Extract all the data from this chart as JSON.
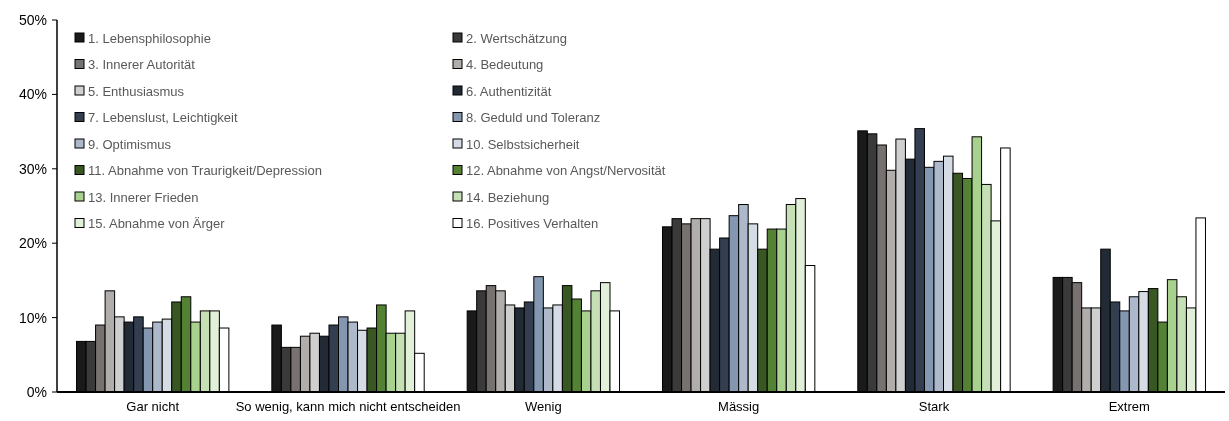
{
  "chart_data": {
    "type": "bar",
    "categories": [
      "Gar nicht",
      "So wenig, kann mich nicht entscheiden",
      "Wenig",
      "Mässig",
      "Stark",
      "Extrem"
    ],
    "ylim": [
      0,
      50
    ],
    "yticks": [
      {
        "value": 0,
        "label": "0%"
      },
      {
        "value": 10,
        "label": "10%"
      },
      {
        "value": 20,
        "label": "20%"
      },
      {
        "value": 30,
        "label": "30%"
      },
      {
        "value": 40,
        "label": "40%"
      },
      {
        "value": 50,
        "label": "50%"
      }
    ],
    "grid": false,
    "legend": "top left",
    "series": [
      {
        "name": "1. Lebensphilosophie",
        "color": "#1a1a1a",
        "values": [
          6.8,
          9.0,
          10.9,
          22.2,
          35.1,
          15.4
        ]
      },
      {
        "name": "2. Wertschätzung",
        "color": "#3a3a3a",
        "values": [
          6.8,
          6.0,
          13.6,
          23.3,
          34.7,
          15.4
        ]
      },
      {
        "name": "3. Innerer Autorität",
        "color": "#777270",
        "values": [
          9.0,
          6.0,
          14.3,
          22.6,
          33.2,
          14.7
        ]
      },
      {
        "name": "4. Bedeutung",
        "color": "#b0adab",
        "values": [
          13.6,
          7.5,
          13.6,
          23.3,
          29.8,
          11.3
        ]
      },
      {
        "name": "5. Enthusiasmus",
        "color": "#d0cfd0",
        "values": [
          10.1,
          7.9,
          11.7,
          23.3,
          34.0,
          11.3
        ]
      },
      {
        "name": "6. Authentizität",
        "color": "#222a35",
        "values": [
          9.4,
          7.5,
          11.3,
          19.2,
          31.3,
          19.2
        ]
      },
      {
        "name": "7. Lebenslust, Leichtigkeit",
        "color": "#333f50",
        "values": [
          10.1,
          9.0,
          12.1,
          20.7,
          35.4,
          12.1
        ]
      },
      {
        "name": "8. Geduld und Toleranz",
        "color": "#8497b0",
        "values": [
          8.6,
          10.1,
          15.5,
          23.7,
          30.2,
          10.9
        ]
      },
      {
        "name": "9. Optimismus",
        "color": "#adb9ca",
        "values": [
          9.4,
          9.4,
          11.3,
          25.2,
          31.0,
          12.8
        ]
      },
      {
        "name": "10. Selbstsicherheit",
        "color": "#d6dce5",
        "values": [
          9.8,
          8.3,
          11.7,
          22.6,
          31.7,
          13.5
        ]
      },
      {
        "name": "11. Abnahme von Traurigkeit/Depression",
        "color": "#385723",
        "values": [
          12.1,
          8.6,
          14.3,
          19.2,
          29.4,
          13.9
        ]
      },
      {
        "name": "12. Abnahme von Angst/Nervosität",
        "color": "#548235",
        "values": [
          12.8,
          11.7,
          12.5,
          21.9,
          28.7,
          9.4
        ]
      },
      {
        "name": "13. Innerer Frieden",
        "color": "#a9d18e",
        "values": [
          9.4,
          7.9,
          10.9,
          21.9,
          34.3,
          15.1
        ]
      },
      {
        "name": "14. Beziehung",
        "color": "#c5e0b4",
        "values": [
          10.9,
          7.9,
          13.6,
          25.2,
          27.9,
          12.8
        ]
      },
      {
        "name": "15. Abnahme von Ärger",
        "color": "#e2f0d9",
        "values": [
          10.9,
          10.9,
          14.7,
          26.0,
          23.0,
          11.3
        ]
      },
      {
        "name": "16. Positives Verhalten",
        "color": "#ffffff",
        "values": [
          8.6,
          5.2,
          10.9,
          17.0,
          32.8,
          23.4
        ]
      }
    ]
  }
}
